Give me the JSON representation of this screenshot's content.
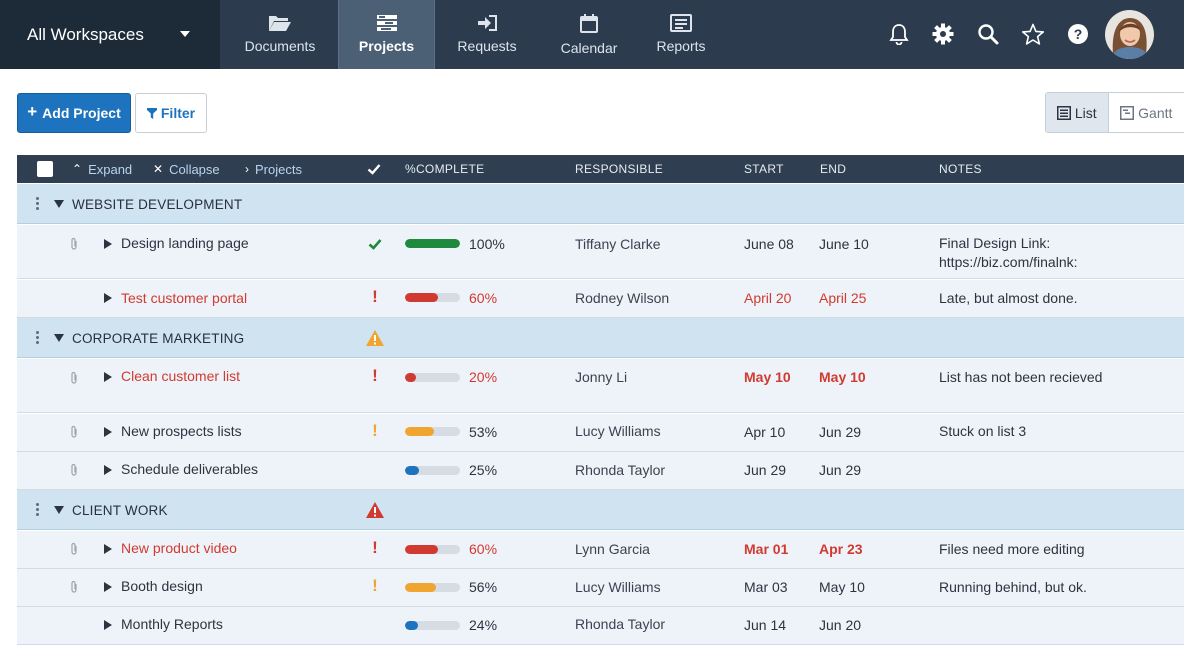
{
  "workspace": {
    "label": "All Workspaces"
  },
  "nav": {
    "tabs": [
      {
        "label": "Documents",
        "icon": "folder-open-icon"
      },
      {
        "label": "Projects",
        "icon": "projects-icon",
        "active": true
      },
      {
        "label": "Requests",
        "icon": "sign-in-icon"
      },
      {
        "label": "Calendar",
        "icon": "calendar-icon"
      },
      {
        "label": "Reports",
        "icon": "reports-icon"
      }
    ],
    "icons": [
      "bell-icon",
      "gear-icon",
      "search-icon",
      "star-icon",
      "help-icon"
    ]
  },
  "toolbar": {
    "add_project": "Add Project",
    "filter": "Filter"
  },
  "view": {
    "list": "List",
    "gantt": "Gantt",
    "selected": "List"
  },
  "table": {
    "actions": {
      "expand": "Expand",
      "collapse": "Collapse",
      "projects": "Projects"
    },
    "columns": {
      "complete": "%COMPLETE",
      "responsible": "RESPONSIBLE",
      "start": "START",
      "end": "END",
      "notes": "NOTES"
    }
  },
  "colors": {
    "accent": "#1e73be",
    "late": "#d13a30",
    "done": "#1e8a3e",
    "warning": "#f0a531",
    "normal": "#1e73be"
  },
  "groups": [
    {
      "name": "WEBSITE DEVELOPMENT",
      "alert": "none"
    },
    {
      "name": "CORPORATE MARKETING",
      "alert": "warning"
    },
    {
      "name": "CLIENT WORK",
      "alert": "critical"
    }
  ],
  "rows": [
    {
      "name": "Design landing page",
      "status": "done",
      "percent": 100,
      "percent_label": "100%",
      "responsible": "Tiffany Clarke",
      "start": "June 08",
      "end": "June 10",
      "notes": "Final Design Link: https://biz.com/finalnk:",
      "late": false,
      "attachment": true
    },
    {
      "name": "Test customer portal",
      "status": "late",
      "percent": 60,
      "percent_label": "60%",
      "responsible": "Rodney Wilson",
      "start": "April 20",
      "end": "April 25",
      "notes": "Late, but almost done.",
      "late": true,
      "attachment": false
    },
    {
      "name": "Clean customer list",
      "status": "late",
      "percent": 20,
      "percent_label": "20%",
      "responsible": "Jonny Li",
      "start": "May 10",
      "end": "May 10",
      "notes": "List has not been recieved",
      "late": true,
      "attachment": true
    },
    {
      "name": "New prospects lists",
      "status": "warning",
      "percent": 53,
      "percent_label": "53%",
      "responsible": "Lucy Williams",
      "start": "Apr 10",
      "end": "Jun 29",
      "notes": "Stuck on list 3",
      "late": false,
      "attachment": true
    },
    {
      "name": "Schedule deliverables",
      "status": "normal",
      "percent": 25,
      "percent_label": "25%",
      "responsible": "Rhonda Taylor",
      "start": "Jun 29",
      "end": "Jun 29",
      "notes": "",
      "late": false,
      "attachment": true
    },
    {
      "name": "New product video",
      "status": "late",
      "percent": 60,
      "percent_label": "60%",
      "responsible": "Lynn Garcia",
      "start": "Mar 01",
      "end": "Apr 23",
      "notes": "Files need more editing",
      "late": true,
      "attachment": true
    },
    {
      "name": "Booth design",
      "status": "warning",
      "percent": 56,
      "percent_label": "56%",
      "responsible": "Lucy Williams",
      "start": "Mar 03",
      "end": "May 10",
      "notes": "Running behind, but ok.",
      "late": false,
      "attachment": true
    },
    {
      "name": "Monthly Reports",
      "status": "normal",
      "percent": 24,
      "percent_label": "24%",
      "responsible": "Rhonda Taylor",
      "start": "Jun 14",
      "end": "Jun 20",
      "notes": "",
      "late": false,
      "attachment": false
    }
  ]
}
